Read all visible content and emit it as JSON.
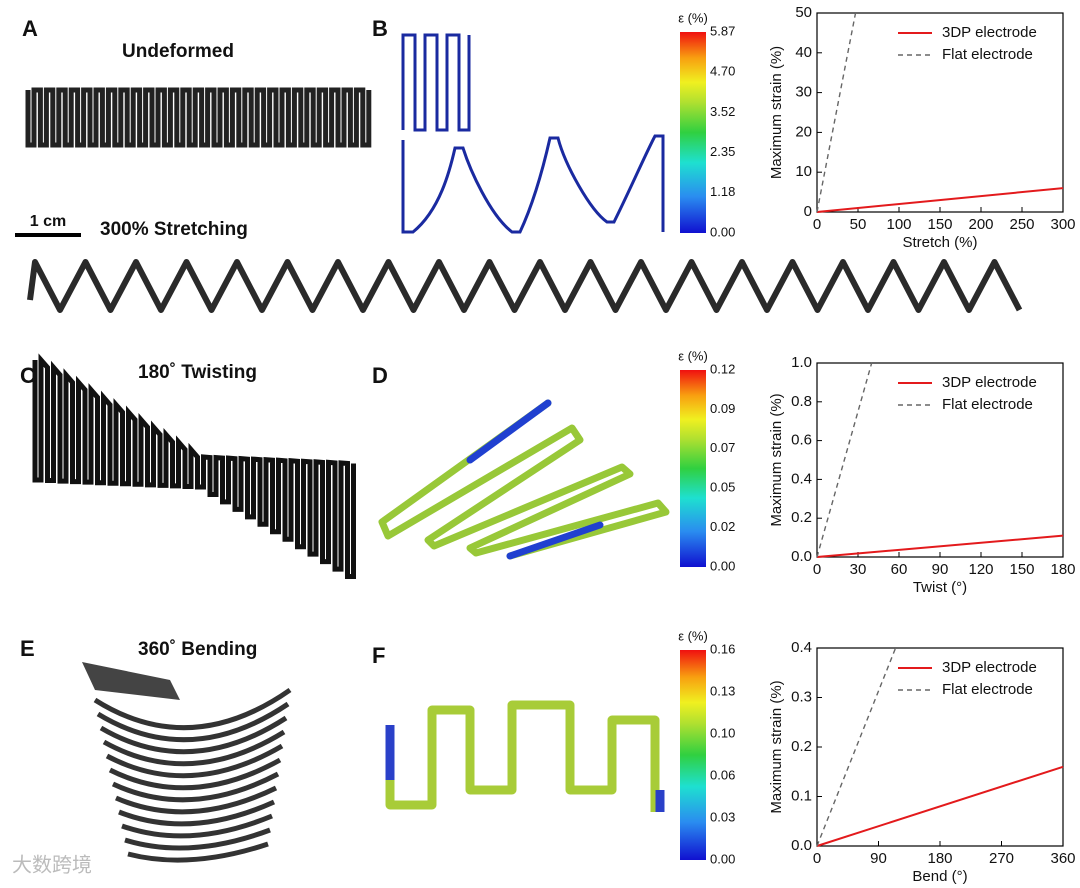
{
  "figure": {
    "panels": [
      "A",
      "B",
      "C",
      "D",
      "E",
      "F"
    ],
    "captions": [
      "Undeformed",
      "300% Stretching",
      "180˚  Twisting",
      "360˚  Bending"
    ],
    "scale_bar": "1 cm",
    "watermark": "大数跨境",
    "colorbars": [
      {
        "title": "ε (%)",
        "labels": [
          "5.87",
          "4.70",
          "3.52",
          "2.35",
          "1.18",
          "0.00"
        ]
      },
      {
        "title": "ε (%)",
        "labels": [
          "0.12",
          "0.09",
          "0.07",
          "0.05",
          "0.02",
          "0.00"
        ]
      },
      {
        "title": "ε (%)",
        "labels": [
          "0.16",
          "0.13",
          "0.10",
          "0.06",
          "0.03",
          "0.00"
        ]
      }
    ]
  },
  "chart_data": [
    {
      "type": "line",
      "xlabel": "Stretch (%)",
      "ylabel": "Maximum strain (%)",
      "xlim": [
        0,
        300
      ],
      "xticks": [
        0,
        50,
        100,
        150,
        200,
        250,
        300
      ],
      "ylim": [
        0,
        50
      ],
      "yticks": [
        0,
        10,
        20,
        30,
        40,
        50
      ],
      "legend": "upper right",
      "series": [
        {
          "name": "3DP electrode",
          "color": "#e31a1c",
          "style": "solid",
          "x": [
            0,
            300
          ],
          "values": [
            0,
            6
          ]
        },
        {
          "name": "Flat electrode",
          "color": "#666666",
          "style": "dashed",
          "x": [
            0,
            47
          ],
          "values": [
            0,
            50
          ]
        }
      ]
    },
    {
      "type": "line",
      "xlabel": "Twist (°)",
      "ylabel": "Maximum strain (%)",
      "xlim": [
        0,
        180
      ],
      "xticks": [
        0,
        30,
        60,
        90,
        120,
        150,
        180
      ],
      "ylim": [
        0,
        1
      ],
      "yticks": [
        {
          "value": 0,
          "label": "0.0"
        },
        0.2,
        0.4,
        0.6,
        0.8,
        {
          "value": 1,
          "label": "1.0"
        }
      ],
      "legend": "upper right",
      "series": [
        {
          "name": "3DP electrode",
          "color": "#e31a1c",
          "style": "solid",
          "x": [
            0,
            180
          ],
          "values": [
            0,
            0.11
          ]
        },
        {
          "name": "Flat electrode",
          "color": "#666666",
          "style": "dashed",
          "x": [
            0,
            40
          ],
          "values": [
            0,
            1
          ]
        }
      ]
    },
    {
      "type": "line",
      "xlabel": "Bend (°)",
      "ylabel": "Maximum strain (%)",
      "xlim": [
        0,
        360
      ],
      "xticks": [
        0,
        90,
        180,
        270,
        360
      ],
      "ylim": [
        0,
        0.4
      ],
      "yticks": [
        {
          "value": 0,
          "label": "0.0"
        },
        0.1,
        0.2,
        0.3,
        0.4
      ],
      "legend": "upper right",
      "series": [
        {
          "name": "3DP electrode",
          "color": "#e31a1c",
          "style": "solid",
          "x": [
            0,
            360
          ],
          "values": [
            0,
            0.16
          ]
        },
        {
          "name": "Flat electrode",
          "color": "#666666",
          "style": "dashed",
          "x": [
            0,
            115
          ],
          "values": [
            0,
            0.4
          ]
        }
      ]
    }
  ]
}
